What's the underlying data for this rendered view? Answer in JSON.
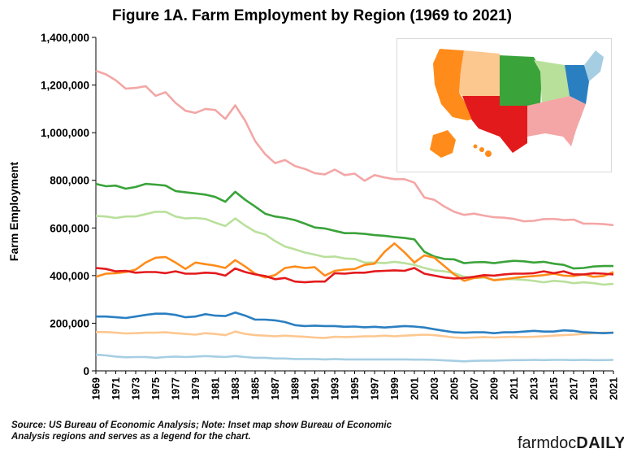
{
  "title": "Figure 1A. Farm Employment by Region (1969 to 2021)",
  "source": "Source: US Bureau of Economic Analysis; Note: Inset map show Bureau of Economic Analysis regions and serves as a legend for the chart.",
  "logo": {
    "part1": "farmdoc",
    "part2": "DAILY"
  },
  "chart_data": {
    "type": "line",
    "ylabel": "Farm Employment",
    "ylim": [
      0,
      1400000
    ],
    "yticks": [
      0,
      200000,
      400000,
      600000,
      800000,
      1000000,
      1200000,
      1400000
    ],
    "ytick_labels": [
      "0",
      "200,000",
      "400,000",
      "600,000",
      "800,000",
      "1,000,000",
      "1,200,000",
      "1,400,000"
    ],
    "x": [
      1969,
      1970,
      1971,
      1972,
      1973,
      1974,
      1975,
      1976,
      1977,
      1978,
      1979,
      1980,
      1981,
      1982,
      1983,
      1984,
      1985,
      1986,
      1987,
      1988,
      1989,
      1990,
      1991,
      1992,
      1993,
      1994,
      1995,
      1996,
      1997,
      1998,
      1999,
      2000,
      2001,
      2002,
      2003,
      2004,
      2005,
      2006,
      2007,
      2008,
      2009,
      2010,
      2011,
      2012,
      2013,
      2014,
      2015,
      2016,
      2017,
      2018,
      2019,
      2020,
      2021
    ],
    "xtick_labels": [
      "1969",
      "1971",
      "1973",
      "1975",
      "1977",
      "1979",
      "1981",
      "1983",
      "1985",
      "1987",
      "1989",
      "1991",
      "1993",
      "1995",
      "1997",
      "1999",
      "2001",
      "2003",
      "2005",
      "2007",
      "2009",
      "2011",
      "2013",
      "2015",
      "2017",
      "2019",
      "2021"
    ],
    "grid": false,
    "legend": "inset map (top-right)",
    "series": [
      {
        "color": "#f4a6a6",
        "values": [
          1260000,
          1245000,
          1220000,
          1185000,
          1188000,
          1195000,
          1155000,
          1170000,
          1125000,
          1092000,
          1083000,
          1100000,
          1095000,
          1058000,
          1115000,
          1050000,
          965000,
          910000,
          872000,
          885000,
          860000,
          848000,
          830000,
          825000,
          845000,
          822000,
          828000,
          798000,
          822000,
          812000,
          805000,
          805000,
          790000,
          728000,
          718000,
          690000,
          668000,
          655000,
          660000,
          652000,
          645000,
          643000,
          638000,
          628000,
          630000,
          637000,
          638000,
          633000,
          635000,
          618000,
          618000,
          616000,
          612000
        ]
      },
      {
        "color": "#3aa33a",
        "values": [
          785000,
          775000,
          778000,
          765000,
          772000,
          785000,
          782000,
          778000,
          755000,
          750000,
          745000,
          740000,
          730000,
          710000,
          752000,
          718000,
          690000,
          660000,
          648000,
          642000,
          633000,
          618000,
          602000,
          598000,
          588000,
          578000,
          578000,
          575000,
          570000,
          567000,
          562000,
          558000,
          552000,
          500000,
          480000,
          470000,
          468000,
          452000,
          456000,
          457000,
          452000,
          458000,
          462000,
          460000,
          455000,
          458000,
          450000,
          445000,
          430000,
          432000,
          438000,
          440000,
          440000
        ]
      },
      {
        "color": "#b9e09b",
        "values": [
          650000,
          648000,
          642000,
          648000,
          648000,
          658000,
          668000,
          668000,
          648000,
          640000,
          642000,
          638000,
          622000,
          608000,
          640000,
          610000,
          585000,
          573000,
          545000,
          522000,
          510000,
          497000,
          488000,
          478000,
          480000,
          472000,
          470000,
          455000,
          455000,
          452000,
          458000,
          452000,
          445000,
          432000,
          422000,
          418000,
          410000,
          395000,
          390000,
          392000,
          382000,
          385000,
          385000,
          382000,
          378000,
          372000,
          378000,
          375000,
          368000,
          372000,
          368000,
          362000,
          365000
        ]
      },
      {
        "color": "#ff8c1a",
        "values": [
          395000,
          408000,
          410000,
          415000,
          425000,
          455000,
          475000,
          478000,
          455000,
          428000,
          455000,
          448000,
          442000,
          432000,
          465000,
          438000,
          408000,
          392000,
          402000,
          432000,
          438000,
          432000,
          435000,
          400000,
          420000,
          425000,
          428000,
          445000,
          450000,
          500000,
          535000,
          498000,
          455000,
          485000,
          475000,
          440000,
          405000,
          378000,
          390000,
          395000,
          380000,
          385000,
          390000,
          395000,
          398000,
          402000,
          408000,
          400000,
          398000,
          405000,
          395000,
          398000,
          415000
        ]
      },
      {
        "color": "#e31a1c",
        "values": [
          432000,
          428000,
          418000,
          420000,
          412000,
          415000,
          415000,
          410000,
          418000,
          408000,
          408000,
          412000,
          410000,
          400000,
          430000,
          415000,
          405000,
          398000,
          385000,
          390000,
          375000,
          372000,
          375000,
          375000,
          410000,
          408000,
          412000,
          412000,
          418000,
          420000,
          422000,
          420000,
          432000,
          408000,
          400000,
          392000,
          388000,
          390000,
          395000,
          402000,
          400000,
          405000,
          408000,
          408000,
          410000,
          418000,
          410000,
          418000,
          405000,
          405000,
          410000,
          408000,
          405000
        ]
      },
      {
        "color": "#fdc790",
        "values": [
          163000,
          163000,
          160000,
          157000,
          158000,
          160000,
          160000,
          162000,
          158000,
          155000,
          152000,
          158000,
          155000,
          150000,
          165000,
          155000,
          150000,
          148000,
          145000,
          148000,
          145000,
          143000,
          140000,
          138000,
          143000,
          142000,
          143000,
          145000,
          145000,
          148000,
          145000,
          148000,
          150000,
          152000,
          150000,
          145000,
          140000,
          138000,
          140000,
          142000,
          140000,
          142000,
          143000,
          142000,
          143000,
          145000,
          148000,
          150000,
          152000,
          155000,
          158000,
          160000,
          160000
        ]
      },
      {
        "color": "#2a7fc1",
        "values": [
          228000,
          228000,
          225000,
          222000,
          228000,
          235000,
          240000,
          240000,
          235000,
          225000,
          228000,
          238000,
          232000,
          230000,
          245000,
          232000,
          215000,
          215000,
          212000,
          205000,
          192000,
          188000,
          190000,
          188000,
          188000,
          185000,
          186000,
          183000,
          185000,
          182000,
          185000,
          188000,
          186000,
          182000,
          175000,
          168000,
          162000,
          160000,
          162000,
          162000,
          158000,
          162000,
          162000,
          165000,
          168000,
          165000,
          165000,
          170000,
          168000,
          162000,
          160000,
          158000,
          160000
        ]
      },
      {
        "color": "#a6cee3",
        "values": [
          68000,
          65000,
          60000,
          57000,
          58000,
          58000,
          55000,
          58000,
          60000,
          58000,
          60000,
          62000,
          60000,
          58000,
          62000,
          58000,
          55000,
          55000,
          52000,
          52000,
          50000,
          50000,
          50000,
          48000,
          50000,
          48000,
          48000,
          48000,
          48000,
          48000,
          48000,
          48000,
          47000,
          47000,
          46000,
          44000,
          42000,
          40000,
          42000,
          43000,
          43000,
          44000,
          45000,
          45000,
          46000,
          45000,
          46000,
          46000,
          45000,
          46000,
          45000,
          45000,
          46000
        ]
      }
    ]
  },
  "inset_map": {
    "regions": [
      {
        "name": "Far West",
        "color": "#ff8c1a"
      },
      {
        "name": "Rocky Mountain",
        "color": "#fdc790"
      },
      {
        "name": "Plains",
        "color": "#3aa33a"
      },
      {
        "name": "Great Lakes",
        "color": "#b9e09b"
      },
      {
        "name": "Southwest",
        "color": "#e31a1c"
      },
      {
        "name": "Southeast",
        "color": "#f4a6a6"
      },
      {
        "name": "Mideast",
        "color": "#2a7fc1"
      },
      {
        "name": "New England",
        "color": "#a6cee3"
      }
    ]
  }
}
